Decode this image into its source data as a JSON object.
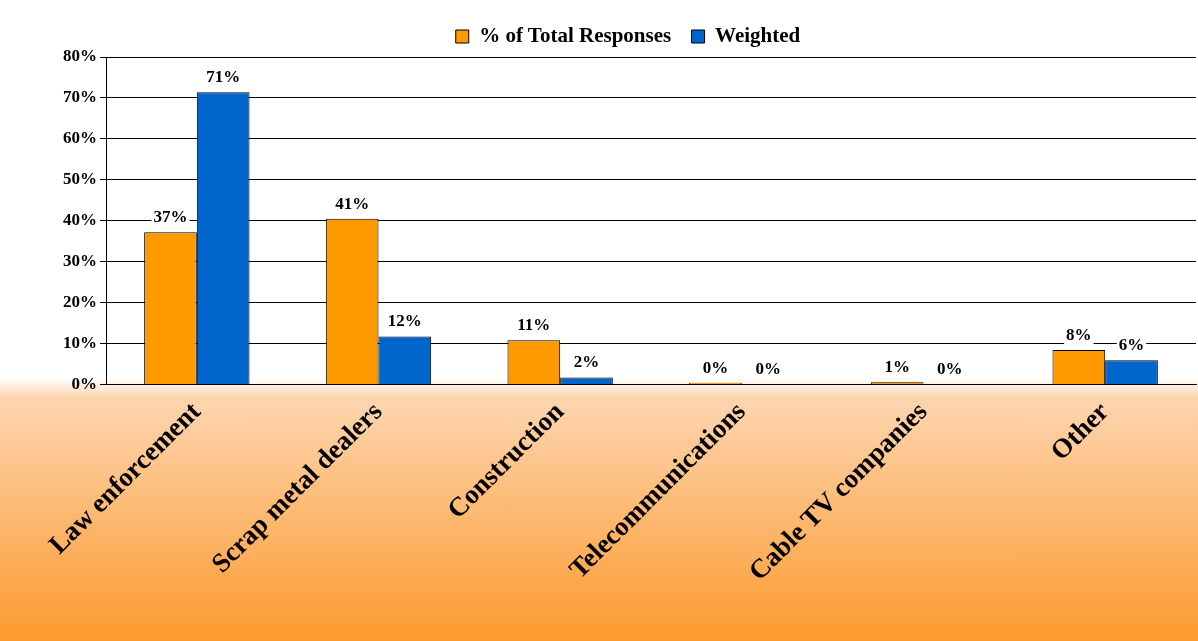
{
  "chart_data": {
    "type": "bar",
    "categories": [
      "Law enforcement",
      "Scrap metal dealers",
      "Construction",
      "Telecommunications",
      "Cable TV companies",
      "Other"
    ],
    "series": [
      {
        "name": "% of Total Responses",
        "color": "#ff9900",
        "values": [
          37.2,
          40.5,
          10.8,
          0.4,
          0.5,
          8.4
        ],
        "value_labels": [
          "37%",
          "41%",
          "11%",
          "0%",
          "1%",
          "8%"
        ]
      },
      {
        "name": "Weighted",
        "color": "#0066cc",
        "values": [
          71.4,
          11.7,
          1.7,
          0.1,
          0.1,
          5.9
        ],
        "value_labels": [
          "71%",
          "12%",
          "2%",
          "0%",
          "0%",
          "6%"
        ]
      }
    ],
    "ylim": [
      0,
      80
    ],
    "yticks": [
      {
        "value": 0,
        "label": "0%"
      },
      {
        "value": 10,
        "label": "10%"
      },
      {
        "value": 20,
        "label": "20%"
      },
      {
        "value": 30,
        "label": "30%"
      },
      {
        "value": 40,
        "label": "40%"
      },
      {
        "value": 50,
        "label": "50%"
      },
      {
        "value": 60,
        "label": "60%"
      },
      {
        "value": 70,
        "label": "70%"
      },
      {
        "value": 80,
        "label": "80%"
      }
    ],
    "grid": "y",
    "legend": "top"
  }
}
